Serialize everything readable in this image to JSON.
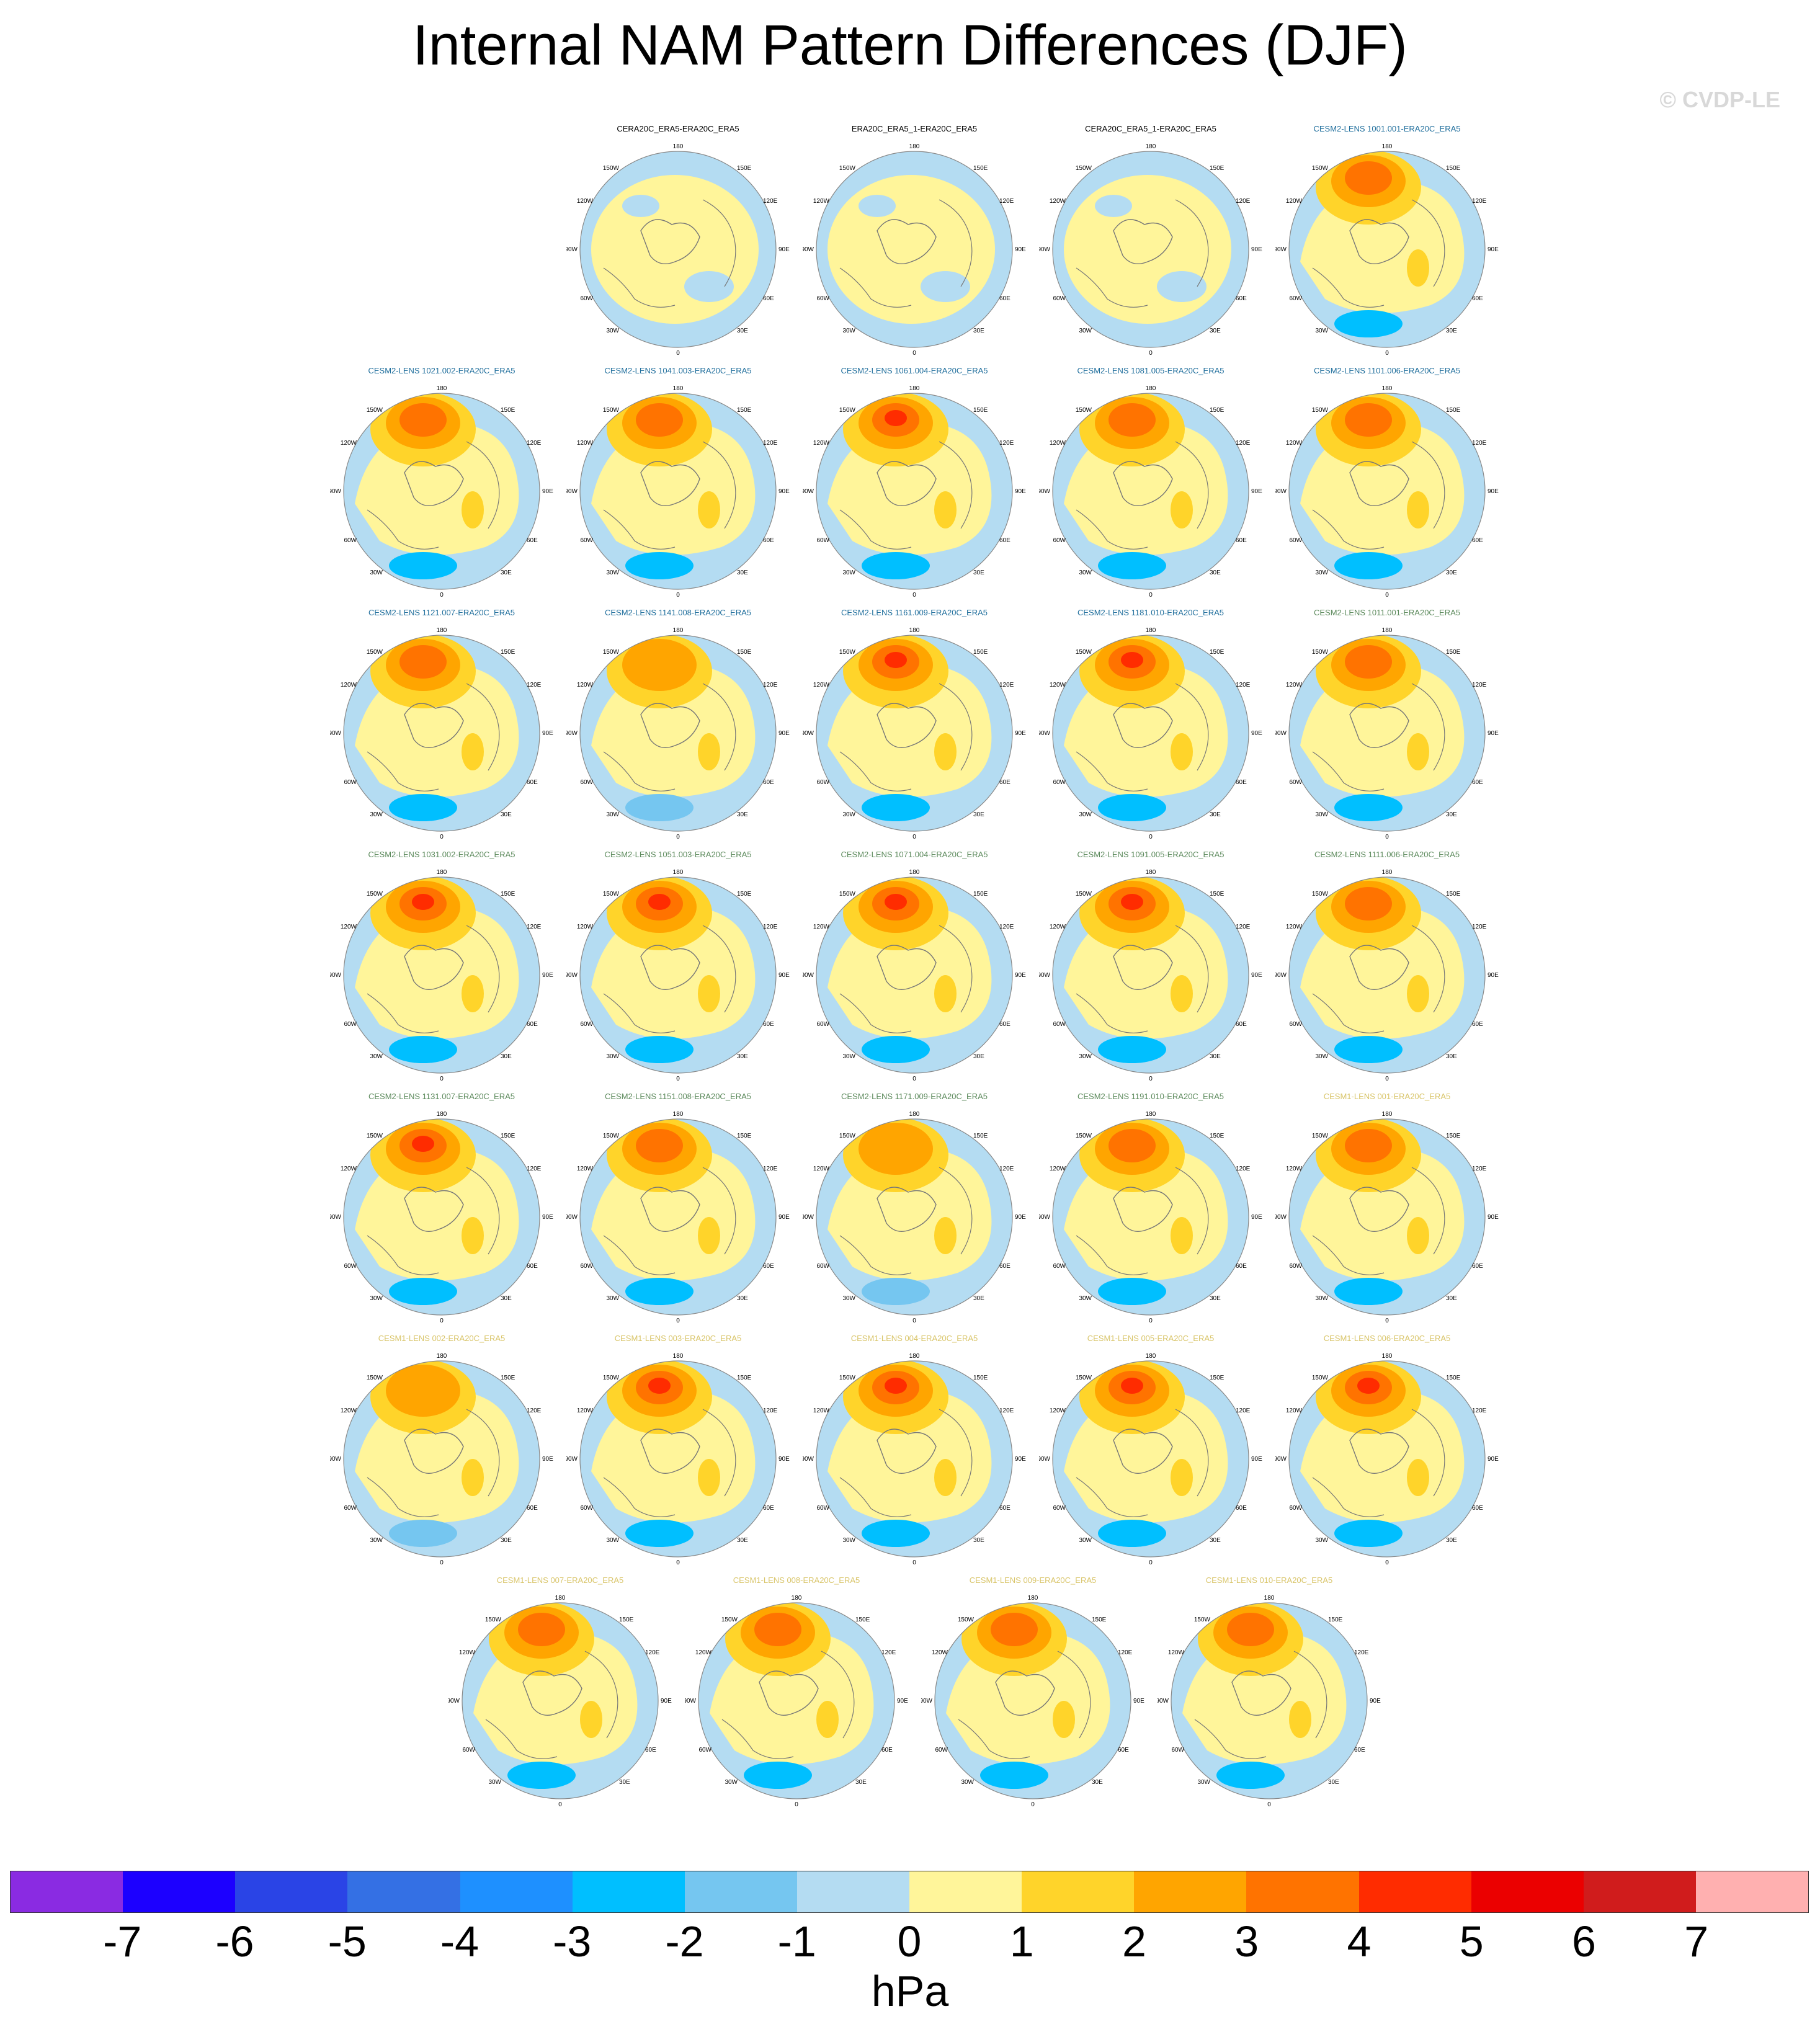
{
  "title": "Internal NAM Pattern Differences (DJF)",
  "watermark": "© CVDP-LE",
  "units": "hPa",
  "map_labels": {
    "top": "180",
    "bottom": "0",
    "left": "90W",
    "right": "90E",
    "upper_left_1": "150W",
    "upper_left_2": "120W",
    "upper_right_1": "150E",
    "upper_right_2": "120E",
    "lower_left_1": "60W",
    "lower_left_2": "30W",
    "lower_right_1": "60E",
    "lower_right_2": "30E"
  },
  "colorbar": {
    "ticks": [
      "-7",
      "-6",
      "-5",
      "-4",
      "-3",
      "-2",
      "-1",
      "0",
      "1",
      "2",
      "3",
      "4",
      "5",
      "6",
      "7"
    ],
    "colors": [
      "#8a2be2",
      "#1c00ff",
      "#2a44e6",
      "#3470e4",
      "#1e90ff",
      "#00bfff",
      "#75c6f0",
      "#b4dcf2",
      "#fff59a",
      "#ffd42a",
      "#ffa500",
      "#ff7300",
      "#ff2c00",
      "#eb0000",
      "#d01c1c",
      "#ffb0b0"
    ]
  },
  "panels": [
    {
      "title": "CERA20C_ERA5-ERA20C_ERA5",
      "color": "#000000",
      "strength": 0
    },
    {
      "title": "ERA20C_ERA5_1-ERA20C_ERA5",
      "color": "#000000",
      "strength": 0
    },
    {
      "title": "CERA20C_ERA5_1-ERA20C_ERA5",
      "color": "#000000",
      "strength": 0
    },
    {
      "title": "CESM2-LENS 1001.001-ERA20C_ERA5",
      "color": "#1f6e9c",
      "strength": 3
    },
    {
      "title": "CESM2-LENS 1021.002-ERA20C_ERA5",
      "color": "#1f6e9c",
      "strength": 3
    },
    {
      "title": "CESM2-LENS 1041.003-ERA20C_ERA5",
      "color": "#1f6e9c",
      "strength": 3
    },
    {
      "title": "CESM2-LENS 1061.004-ERA20C_ERA5",
      "color": "#1f6e9c",
      "strength": 4
    },
    {
      "title": "CESM2-LENS 1081.005-ERA20C_ERA5",
      "color": "#1f6e9c",
      "strength": 3
    },
    {
      "title": "CESM2-LENS 1101.006-ERA20C_ERA5",
      "color": "#1f6e9c",
      "strength": 3
    },
    {
      "title": "CESM2-LENS 1121.007-ERA20C_ERA5",
      "color": "#1f6e9c",
      "strength": 3
    },
    {
      "title": "CESM2-LENS 1141.008-ERA20C_ERA5",
      "color": "#1f6e9c",
      "strength": 2
    },
    {
      "title": "CESM2-LENS 1161.009-ERA20C_ERA5",
      "color": "#1f6e9c",
      "strength": 4
    },
    {
      "title": "CESM2-LENS 1181.010-ERA20C_ERA5",
      "color": "#1f6e9c",
      "strength": 4
    },
    {
      "title": "CESM2-LENS 1011.001-ERA20C_ERA5",
      "color": "#5c8a5c",
      "strength": 3
    },
    {
      "title": "CESM2-LENS 1031.002-ERA20C_ERA5",
      "color": "#5c8a5c",
      "strength": 4
    },
    {
      "title": "CESM2-LENS 1051.003-ERA20C_ERA5",
      "color": "#5c8a5c",
      "strength": 4
    },
    {
      "title": "CESM2-LENS 1071.004-ERA20C_ERA5",
      "color": "#5c8a5c",
      "strength": 4
    },
    {
      "title": "CESM2-LENS 1091.005-ERA20C_ERA5",
      "color": "#5c8a5c",
      "strength": 4
    },
    {
      "title": "CESM2-LENS 1111.006-ERA20C_ERA5",
      "color": "#5c8a5c",
      "strength": 3
    },
    {
      "title": "CESM2-LENS 1131.007-ERA20C_ERA5",
      "color": "#5c8a5c",
      "strength": 4
    },
    {
      "title": "CESM2-LENS 1151.008-ERA20C_ERA5",
      "color": "#5c8a5c",
      "strength": 3
    },
    {
      "title": "CESM2-LENS 1171.009-ERA20C_ERA5",
      "color": "#5c8a5c",
      "strength": 2
    },
    {
      "title": "CESM2-LENS 1191.010-ERA20C_ERA5",
      "color": "#5c8a5c",
      "strength": 3
    },
    {
      "title": "CESM1-LENS 001-ERA20C_ERA5",
      "color": "#d9c56a",
      "strength": 3
    },
    {
      "title": "CESM1-LENS 002-ERA20C_ERA5",
      "color": "#d9c56a",
      "strength": 2
    },
    {
      "title": "CESM1-LENS 003-ERA20C_ERA5",
      "color": "#d9c56a",
      "strength": 4
    },
    {
      "title": "CESM1-LENS 004-ERA20C_ERA5",
      "color": "#d9c56a",
      "strength": 4
    },
    {
      "title": "CESM1-LENS 005-ERA20C_ERA5",
      "color": "#d9c56a",
      "strength": 4
    },
    {
      "title": "CESM1-LENS 006-ERA20C_ERA5",
      "color": "#d9c56a",
      "strength": 4
    },
    {
      "title": "CESM1-LENS 007-ERA20C_ERA5",
      "color": "#d9c56a",
      "strength": 3
    },
    {
      "title": "CESM1-LENS 008-ERA20C_ERA5",
      "color": "#d9c56a",
      "strength": 3
    },
    {
      "title": "CESM1-LENS 009-ERA20C_ERA5",
      "color": "#d9c56a",
      "strength": 3
    },
    {
      "title": "CESM1-LENS 010-ERA20C_ERA5",
      "color": "#d9c56a",
      "strength": 3
    }
  ]
}
